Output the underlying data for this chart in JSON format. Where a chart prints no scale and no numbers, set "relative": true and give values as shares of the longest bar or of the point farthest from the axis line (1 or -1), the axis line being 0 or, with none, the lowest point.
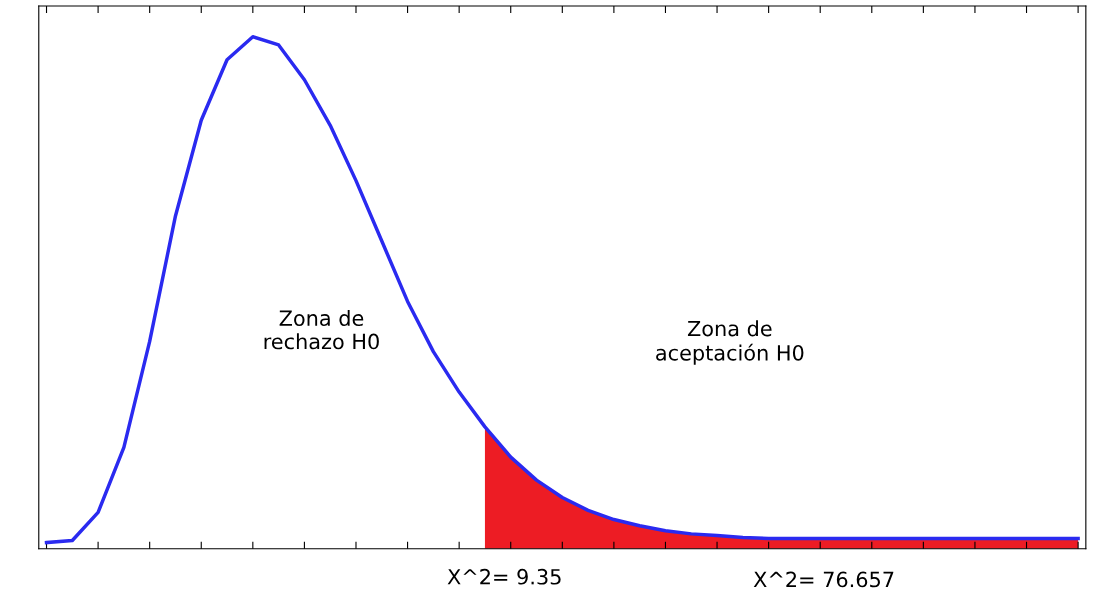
{
  "chart_data": {
    "type": "line",
    "relative": true,
    "tick_labels": false,
    "grid": false,
    "legend": false,
    "marker": "none",
    "line_style": "solid",
    "categories": [
      null,
      null,
      null,
      null,
      null,
      null,
      null,
      null,
      null,
      null,
      null,
      null,
      null,
      null,
      null,
      null,
      null,
      null,
      null,
      null,
      null,
      null,
      null,
      null,
      null,
      null,
      null,
      null,
      null,
      null,
      null,
      null,
      null,
      null,
      null,
      null,
      null,
      null,
      null,
      null,
      null
    ],
    "series": [
      {
        "type": "area",
        "color": "#ed1c24",
        "values": [
          null,
          null,
          null,
          null,
          null,
          null,
          null,
          null,
          null,
          null,
          null,
          null,
          null,
          null,
          null,
          null,
          null,
          0.238,
          0.179,
          0.134,
          0.1,
          0.075,
          0.057,
          0.045,
          0.035,
          0.029,
          0.026,
          0.022,
          0.02,
          0.02,
          0.02,
          0.02,
          0.02,
          0.02,
          0.02,
          0.02,
          0.02,
          0.02,
          0.02,
          0.02,
          0.02
        ]
      },
      {
        "type": "line",
        "color": "#2a2af0",
        "values": [
          0.012,
          0.016,
          0.071,
          0.198,
          0.405,
          0.65,
          0.837,
          0.955,
          1.0,
          0.984,
          0.916,
          0.827,
          0.719,
          0.601,
          0.483,
          0.385,
          0.306,
          0.238,
          0.179,
          0.134,
          0.1,
          0.075,
          0.057,
          0.045,
          0.035,
          0.029,
          0.026,
          0.022,
          0.02,
          0.02,
          0.02,
          0.02,
          0.02,
          0.02,
          0.02,
          0.02,
          0.02,
          0.02,
          0.02,
          0.02,
          0.02
        ]
      }
    ],
    "annotations": [
      "Zona de\nrechazo H0",
      "Zona de\naceptación H0",
      "X^2= 9.35",
      "X^2= 76.657"
    ]
  }
}
